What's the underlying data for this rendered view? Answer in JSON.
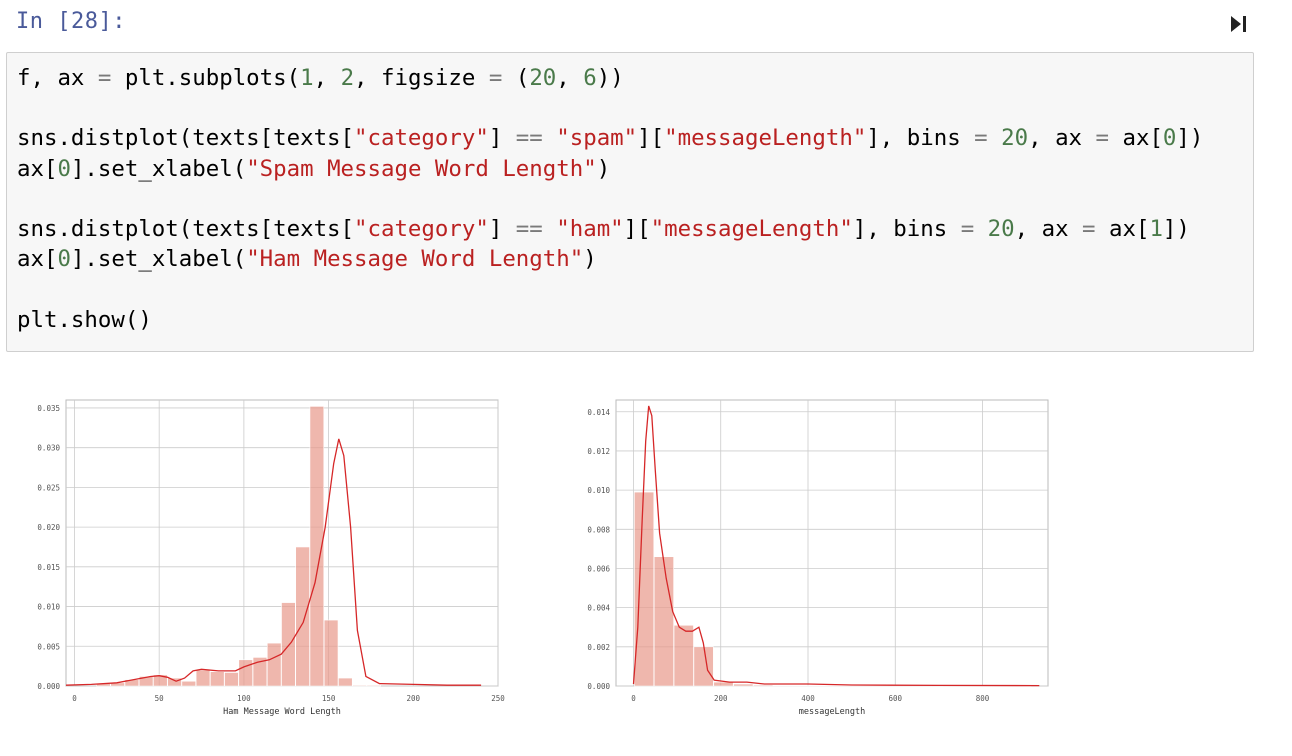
{
  "cell": {
    "prompt": "In [28]:",
    "code_lines": [
      [
        [
          "f, ax ",
          "p"
        ],
        [
          "=",
          "o"
        ],
        [
          " plt.subplots(",
          "p"
        ],
        [
          "1",
          "n"
        ],
        [
          ", ",
          "p"
        ],
        [
          "2",
          "n"
        ],
        [
          ", figsize ",
          "p"
        ],
        [
          "=",
          "o"
        ],
        [
          " (",
          "p"
        ],
        [
          "20",
          "n"
        ],
        [
          ", ",
          "p"
        ],
        [
          "6",
          "n"
        ],
        [
          "))",
          "p"
        ]
      ],
      [],
      [
        [
          "sns.distplot(texts[texts[",
          "p"
        ],
        [
          "\"category\"",
          "s"
        ],
        [
          "] ",
          "p"
        ],
        [
          "==",
          "o"
        ],
        [
          " ",
          "p"
        ],
        [
          "\"spam\"",
          "s"
        ],
        [
          "][",
          "p"
        ],
        [
          "\"messageLength\"",
          "s"
        ],
        [
          "], bins ",
          "p"
        ],
        [
          "=",
          "o"
        ],
        [
          " ",
          "p"
        ],
        [
          "20",
          "n"
        ],
        [
          ", ax ",
          "p"
        ],
        [
          "=",
          "o"
        ],
        [
          " ax[",
          "p"
        ],
        [
          "0",
          "n"
        ],
        [
          "])",
          "p"
        ]
      ],
      [
        [
          "ax[",
          "p"
        ],
        [
          "0",
          "n"
        ],
        [
          "].set_xlabel(",
          "p"
        ],
        [
          "\"Spam Message Word Length\"",
          "s"
        ],
        [
          ")",
          "p"
        ]
      ],
      [],
      [
        [
          "sns.distplot(texts[texts[",
          "p"
        ],
        [
          "\"category\"",
          "s"
        ],
        [
          "] ",
          "p"
        ],
        [
          "==",
          "o"
        ],
        [
          " ",
          "p"
        ],
        [
          "\"ham\"",
          "s"
        ],
        [
          "][",
          "p"
        ],
        [
          "\"messageLength\"",
          "s"
        ],
        [
          "], bins ",
          "p"
        ],
        [
          "=",
          "o"
        ],
        [
          " ",
          "p"
        ],
        [
          "20",
          "n"
        ],
        [
          ", ax ",
          "p"
        ],
        [
          "=",
          "o"
        ],
        [
          " ax[",
          "p"
        ],
        [
          "1",
          "n"
        ],
        [
          "])",
          "p"
        ]
      ],
      [
        [
          "ax[",
          "p"
        ],
        [
          "0",
          "n"
        ],
        [
          "].set_xlabel(",
          "p"
        ],
        [
          "\"Ham Message Word Length\"",
          "s"
        ],
        [
          ")",
          "p"
        ]
      ],
      [],
      [
        [
          "plt.show()",
          "p"
        ]
      ]
    ]
  },
  "colors": {
    "bar": "#e8998a",
    "bar_alpha": 0.7,
    "kde": "#d62728",
    "grid": "#cccccc"
  },
  "chart_data": [
    {
      "type": "bar",
      "xlabel": "Ham Message Word Length",
      "xlim": [
        -5,
        250
      ],
      "ylim": [
        0,
        0.036
      ],
      "xticks": [
        0,
        50,
        100,
        150,
        200,
        250
      ],
      "xtick_labels": [
        "0",
        "50",
        "100",
        "150",
        "200",
        "250"
      ],
      "yticks": [
        0.0,
        0.005,
        0.01,
        0.015,
        0.02,
        0.025,
        0.03,
        0.035
      ],
      "ytick_labels": [
        "0.000",
        "0.005",
        "0.010",
        "0.015",
        "0.020",
        "0.025",
        "0.030",
        "0.035"
      ],
      "bin_start": 13,
      "bin_width": 8.4,
      "values": [
        0.0003,
        0.0004,
        0.0008,
        0.0012,
        0.0014,
        0.001,
        0.0006,
        0.002,
        0.0018,
        0.0017,
        0.0033,
        0.0036,
        0.0054,
        0.0105,
        0.0175,
        0.0352,
        0.0083,
        0.001,
        0.0001,
        0.0001
      ],
      "kde": [
        [
          -5,
          0.0001
        ],
        [
          10,
          0.0002
        ],
        [
          25,
          0.0004
        ],
        [
          35,
          0.0008
        ],
        [
          45,
          0.0012
        ],
        [
          50,
          0.0013
        ],
        [
          55,
          0.0011
        ],
        [
          60,
          0.0006
        ],
        [
          65,
          0.001
        ],
        [
          70,
          0.0019
        ],
        [
          75,
          0.0021
        ],
        [
          85,
          0.0019
        ],
        [
          95,
          0.0019
        ],
        [
          100,
          0.0024
        ],
        [
          108,
          0.003
        ],
        [
          115,
          0.0033
        ],
        [
          122,
          0.004
        ],
        [
          128,
          0.0055
        ],
        [
          135,
          0.008
        ],
        [
          142,
          0.013
        ],
        [
          148,
          0.02
        ],
        [
          153,
          0.028
        ],
        [
          156,
          0.0311
        ],
        [
          159,
          0.029
        ],
        [
          163,
          0.02
        ],
        [
          167,
          0.007
        ],
        [
          172,
          0.0012
        ],
        [
          180,
          0.0003
        ],
        [
          200,
          0.0002
        ],
        [
          220,
          0.0001
        ],
        [
          240,
          0.0001
        ]
      ]
    },
    {
      "type": "bar",
      "xlabel": "messageLength",
      "xlim": [
        -40,
        950
      ],
      "ylim": [
        0,
        0.0146
      ],
      "xticks": [
        0,
        200,
        400,
        600,
        800
      ],
      "xtick_labels": [
        "0",
        "200",
        "400",
        "600",
        "800"
      ],
      "yticks": [
        0.0,
        0.002,
        0.004,
        0.006,
        0.008,
        0.01,
        0.012,
        0.014
      ],
      "ytick_labels": [
        "0.000",
        "0.002",
        "0.004",
        "0.006",
        "0.008",
        "0.010",
        "0.012",
        "0.014"
      ],
      "bin_start": 2,
      "bin_width": 45.5,
      "values": [
        0.0099,
        0.0066,
        0.0031,
        0.002,
        0.0002,
        0.0001,
        5e-05,
        3e-05,
        2e-05,
        1e-05,
        1e-05,
        1e-05,
        1e-05,
        1e-05,
        1e-05,
        1e-05,
        1e-05,
        1e-05,
        1e-05,
        1e-05
      ],
      "kde": [
        [
          0,
          0.0001
        ],
        [
          10,
          0.003
        ],
        [
          20,
          0.0085
        ],
        [
          28,
          0.0125
        ],
        [
          35,
          0.0143
        ],
        [
          42,
          0.0138
        ],
        [
          50,
          0.011
        ],
        [
          60,
          0.0078
        ],
        [
          75,
          0.0055
        ],
        [
          90,
          0.0038
        ],
        [
          105,
          0.003
        ],
        [
          120,
          0.0028
        ],
        [
          135,
          0.0028
        ],
        [
          150,
          0.003
        ],
        [
          160,
          0.0022
        ],
        [
          170,
          0.0008
        ],
        [
          185,
          0.0003
        ],
        [
          220,
          0.0002
        ],
        [
          260,
          0.0002
        ],
        [
          300,
          0.0001
        ],
        [
          400,
          0.0001
        ],
        [
          500,
          5e-05
        ],
        [
          700,
          3e-05
        ],
        [
          930,
          2e-05
        ]
      ]
    }
  ]
}
